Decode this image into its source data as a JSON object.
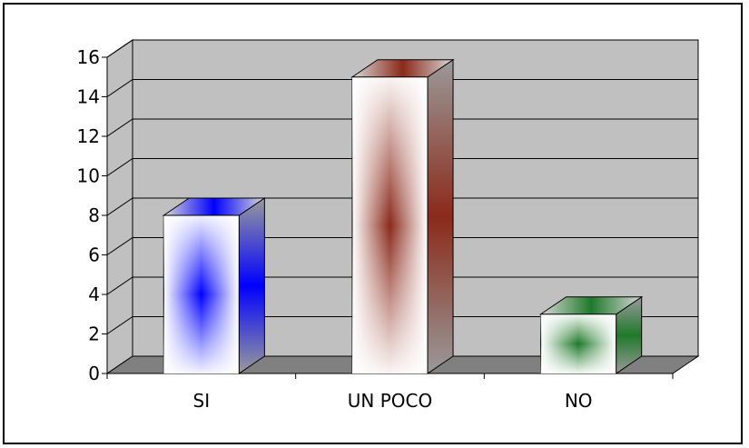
{
  "chart_data": {
    "type": "bar",
    "style": "3d-column",
    "categories": [
      "SI",
      "UN POCO",
      "NO"
    ],
    "values": [
      8,
      15,
      3
    ],
    "ylim": [
      0,
      16
    ],
    "yticks": [
      0,
      2,
      4,
      6,
      8,
      10,
      12,
      14,
      16
    ],
    "grid": true,
    "legend": "none",
    "title": "",
    "xlabel": "",
    "ylabel": "",
    "colors": {
      "wall": "#c0c0c0",
      "floor": "#808080",
      "gridline": "#000000",
      "series": [
        "#0000ff",
        "#8b2a1a",
        "#1f7a2a"
      ]
    }
  }
}
